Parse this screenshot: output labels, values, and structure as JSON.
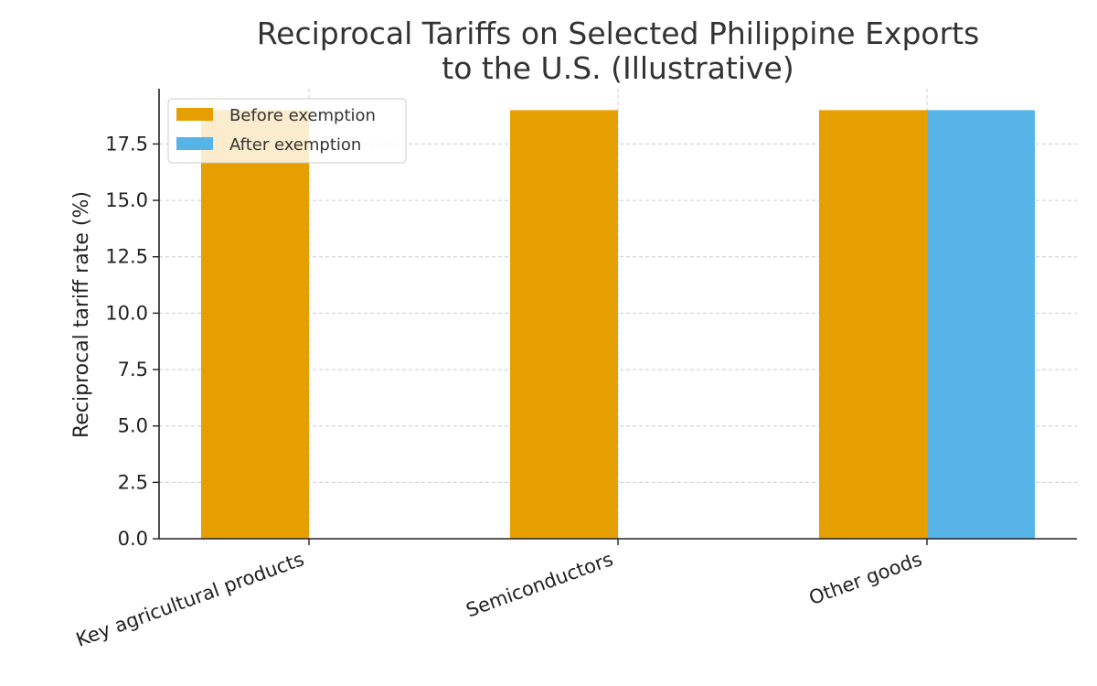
{
  "chart_data": {
    "type": "bar",
    "title_lines": [
      "Reciprocal Tariffs on Selected Philippine Exports",
      "to the U.S. (Illustrative)"
    ],
    "xlabel": "",
    "ylabel": "Reciprocal tariff rate (%)",
    "categories": [
      "Key agricultural products",
      "Semiconductors",
      "Other goods"
    ],
    "series": [
      {
        "name": "Before exemption",
        "color": "#E69F00",
        "values": [
          19,
          19,
          19
        ]
      },
      {
        "name": "After exemption",
        "color": "#56B4E9",
        "values": [
          0,
          0,
          19
        ]
      }
    ],
    "ylim": [
      0,
      19.95
    ],
    "yticks": [
      "0.0",
      "2.5",
      "5.0",
      "7.5",
      "10.0",
      "12.5",
      "15.0",
      "17.5"
    ],
    "grid": true,
    "legend_position": "upper-left"
  }
}
